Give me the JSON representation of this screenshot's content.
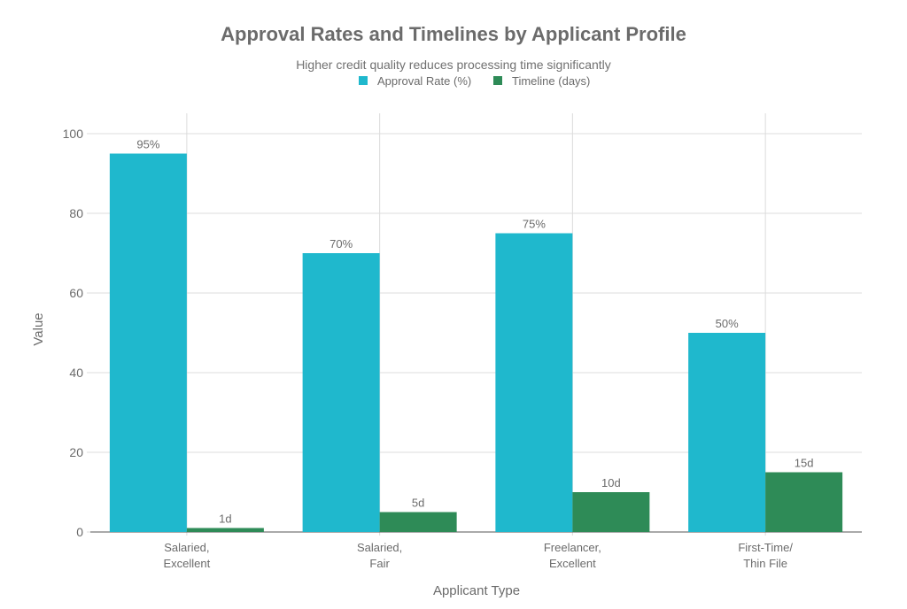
{
  "chart_data": {
    "type": "bar",
    "title": "Approval Rates and Timelines by Applicant Profile",
    "subtitle": "Higher credit quality reduces processing time significantly",
    "xlabel": "Applicant Type",
    "ylabel": "Value",
    "ylim": [
      0,
      100
    ],
    "yticks": [
      0,
      20,
      40,
      60,
      80,
      100
    ],
    "grid": true,
    "legend": "top-center",
    "categories": [
      [
        "Salaried,",
        "Excellent"
      ],
      [
        "Salaried,",
        "Fair"
      ],
      [
        "Freelancer,",
        "Excellent"
      ],
      [
        "First-Time/",
        "Thin File"
      ]
    ],
    "series": [
      {
        "name": "Approval Rate (%)",
        "color": "#1FB8CD",
        "values": [
          95,
          70,
          75,
          50
        ],
        "labels": [
          "95%",
          "70%",
          "75%",
          "50%"
        ]
      },
      {
        "name": "Timeline (days)",
        "color": "#2E8B57",
        "values": [
          1,
          5,
          10,
          15
        ],
        "labels": [
          "1d",
          "5d",
          "10d",
          "15d"
        ]
      }
    ]
  }
}
